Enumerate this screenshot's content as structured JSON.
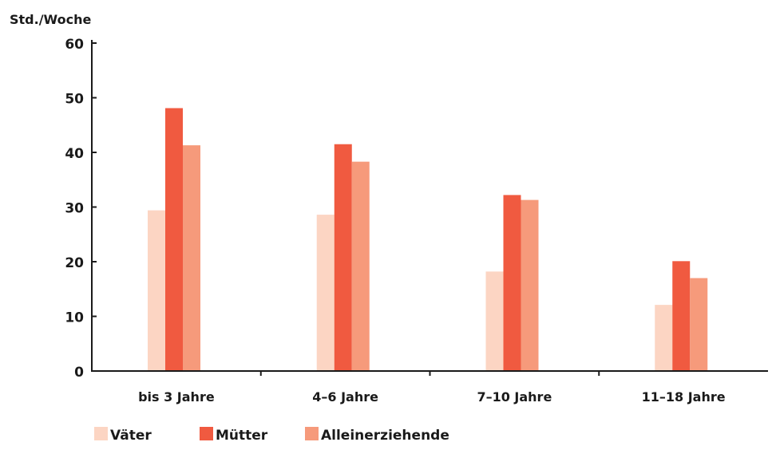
{
  "chart_data": {
    "type": "bar",
    "ylabel": "Std./Woche",
    "categories": [
      "bis 3 Jahre",
      "4–6 Jahre",
      "7–10 Jahre",
      "11–18 Jahre"
    ],
    "ylim": [
      0,
      60
    ],
    "yticks": [
      "0",
      "10",
      "20",
      "30",
      "40",
      "50",
      "60"
    ],
    "grid": false,
    "legend_position": "bottom-left",
    "series": [
      {
        "name": "Väter",
        "color": "#fcd5c3",
        "values": [
          29.4,
          28.6,
          18.2,
          12.1
        ]
      },
      {
        "name": "Mütter",
        "color": "#f05a40",
        "values": [
          48.1,
          41.5,
          32.2,
          20.1
        ]
      },
      {
        "name": "Alleinerziehende",
        "color": "#f69a7b",
        "values": [
          41.3,
          38.3,
          31.3,
          17.0
        ]
      }
    ]
  }
}
